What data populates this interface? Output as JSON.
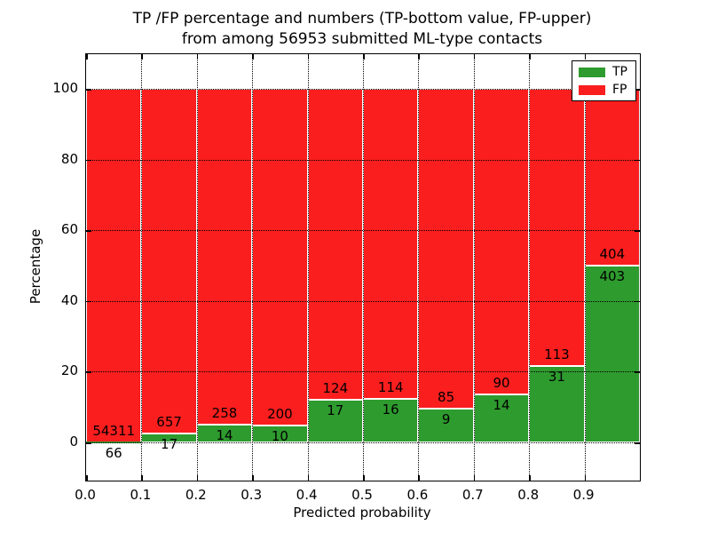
{
  "chart_data": {
    "type": "bar",
    "stacked": true,
    "title": "TP /FP percentage and numbers (TP-bottom value, FP-upper)\nfrom among 56953 submitted ML-type contacts",
    "xlabel": "Predicted probability",
    "ylabel": "Percentage",
    "total_contacts": 56953,
    "xlim": [
      0.0,
      1.0
    ],
    "ylim": [
      -10.8,
      109.8
    ],
    "x_tick_labels": [
      "0.0",
      "0.1",
      "0.2",
      "0.3",
      "0.4",
      "0.5",
      "0.6",
      "0.7",
      "0.8",
      "0.9"
    ],
    "x_tick_values": [
      0.0,
      0.1,
      0.2,
      0.3,
      0.4,
      0.5,
      0.6,
      0.7,
      0.8,
      0.9
    ],
    "y_tick_labels": [
      "0",
      "20",
      "40",
      "60",
      "80",
      "100"
    ],
    "y_tick_values": [
      0,
      20,
      40,
      60,
      80,
      100
    ],
    "grid": "dotted black, drawn above bars",
    "colors": {
      "tp": "#2e9b2e",
      "fp": "#fa1e1e",
      "bar_edge": "#ffffff"
    },
    "legend": {
      "position": "upper right",
      "entries": [
        {
          "label": "TP",
          "color": "#2e9b2e"
        },
        {
          "label": "FP",
          "color": "#fa1e1e"
        }
      ]
    },
    "bins": [
      {
        "range": [
          0.0,
          0.1
        ],
        "tp": 66,
        "fp": 54311,
        "tp_pct": 0.12,
        "fp_pct": 99.88
      },
      {
        "range": [
          0.1,
          0.2
        ],
        "tp": 17,
        "fp": 657,
        "tp_pct": 2.52,
        "fp_pct": 97.48
      },
      {
        "range": [
          0.2,
          0.3
        ],
        "tp": 14,
        "fp": 258,
        "tp_pct": 5.15,
        "fp_pct": 94.85
      },
      {
        "range": [
          0.3,
          0.4
        ],
        "tp": 10,
        "fp": 200,
        "tp_pct": 4.76,
        "fp_pct": 95.24
      },
      {
        "range": [
          0.4,
          0.5
        ],
        "tp": 17,
        "fp": 124,
        "tp_pct": 12.06,
        "fp_pct": 87.94
      },
      {
        "range": [
          0.5,
          0.6
        ],
        "tp": 16,
        "fp": 114,
        "tp_pct": 12.31,
        "fp_pct": 87.69
      },
      {
        "range": [
          0.6,
          0.7
        ],
        "tp": 9,
        "fp": 85,
        "tp_pct": 9.57,
        "fp_pct": 90.43
      },
      {
        "range": [
          0.7,
          0.8
        ],
        "tp": 14,
        "fp": 90,
        "tp_pct": 13.46,
        "fp_pct": 86.54
      },
      {
        "range": [
          0.8,
          0.9
        ],
        "tp": 31,
        "fp": 113,
        "tp_pct": 21.53,
        "fp_pct": 78.47
      },
      {
        "range": [
          0.9,
          1.0
        ],
        "tp": 403,
        "fp": 404,
        "tp_pct": 49.94,
        "fp_pct": 50.06
      }
    ]
  }
}
